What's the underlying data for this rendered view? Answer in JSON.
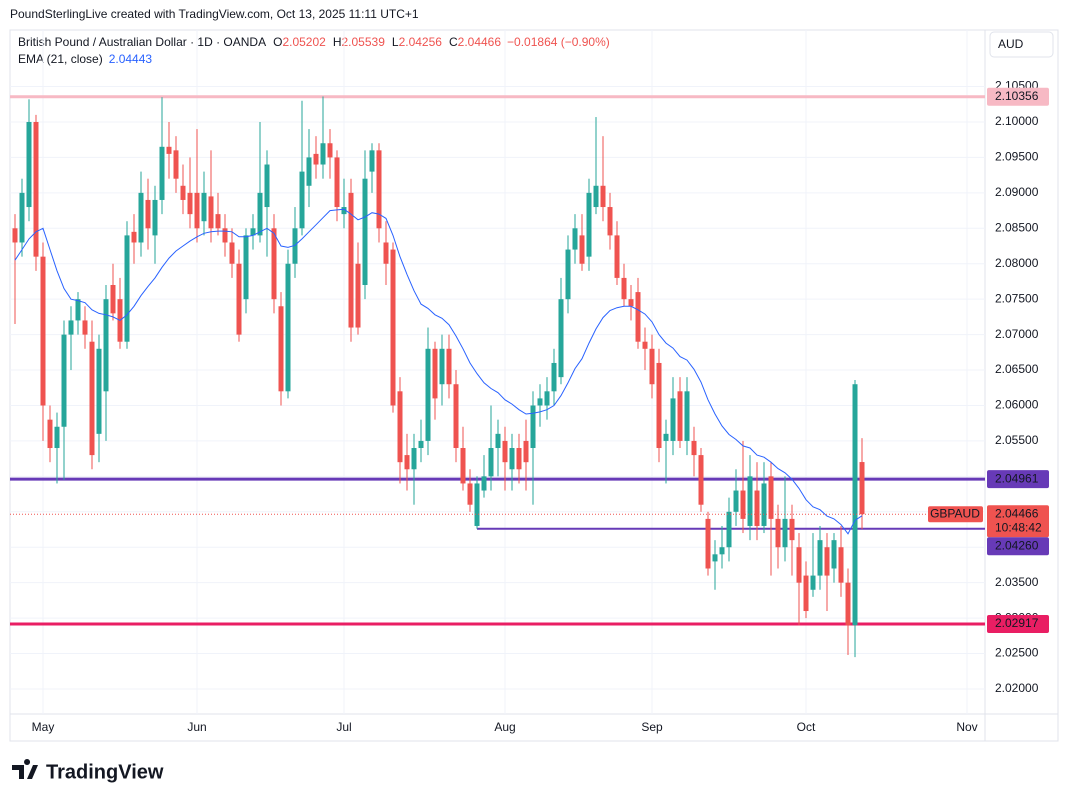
{
  "header": {
    "attribution": "PoundSterlingLive created with TradingView.com, Oct 13, 2025 11:11 UTC+1",
    "symbol": "British Pound / Australian Dollar · 1D · OANDA",
    "ohlc_labels": [
      "O",
      "H",
      "L",
      "C"
    ],
    "change": "−0.01864 (−0.90%)",
    "currency": "AUD",
    "logo": "TradingView"
  },
  "chart_data": {
    "type": "candlestick",
    "symbol": "GBPAUD",
    "countdown": "10:48:42",
    "colors": {
      "up": "#26a69a",
      "down": "#ef5350"
    },
    "open": [
      2.085,
      2.083,
      2.088,
      2.1,
      2.081,
      2.058,
      2.054,
      2.057,
      2.07,
      2.072,
      2.072,
      2.069,
      2.056,
      2.062,
      2.077,
      2.075,
      2.069,
      2.0845,
      2.083,
      2.089,
      2.084,
      2.089,
      2.0965,
      2.096,
      2.091,
      2.09,
      2.09,
      2.086,
      2.0895,
      2.087,
      2.085,
      2.083,
      2.08,
      2.075,
      2.084,
      2.084,
      2.088,
      2.085,
      2.074,
      2.062,
      2.08,
      2.085,
      2.091,
      2.0955,
      2.094,
      2.097,
      2.095,
      2.087,
      2.09,
      2.08,
      2.077,
      2.093,
      2.096,
      2.083,
      2.082,
      2.062,
      2.053,
      2.051,
      2.054,
      2.055,
      2.068,
      2.063,
      2.068,
      2.063,
      2.054,
      2.049,
      2.043,
      2.048,
      2.05,
      2.054,
      2.055,
      2.051,
      2.054,
      2.055,
      2.054,
      2.06,
      2.06,
      2.062,
      2.064,
      2.075,
      2.082,
      2.084,
      2.081,
      2.088,
      2.091,
      2.088,
      2.084,
      2.078,
      2.075,
      2.076,
      2.069,
      2.068,
      2.066,
      2.055,
      2.055,
      2.062,
      2.055,
      2.055,
      2.053,
      2.044,
      2.038,
      2.039,
      2.04,
      2.045,
      2.048,
      2.043,
      2.048,
      2.043,
      2.05,
      2.044,
      2.04,
      2.044,
      2.04,
      2.036,
      2.034,
      2.036,
      2.04,
      2.037,
      2.04,
      2.035,
      2.029,
      2.05202
    ],
    "high": [
      2.087,
      2.092,
      2.1032,
      2.101,
      2.083,
      2.06,
      2.059,
      2.072,
      2.074,
      2.076,
      2.074,
      2.072,
      2.07,
      2.077,
      2.08,
      2.078,
      2.086,
      2.087,
      2.093,
      2.092,
      2.091,
      2.1035,
      2.1,
      2.098,
      2.094,
      2.095,
      2.099,
      2.093,
      2.096,
      2.09,
      2.087,
      2.085,
      2.082,
      2.085,
      2.087,
      2.1,
      2.096,
      2.087,
      2.076,
      2.082,
      2.088,
      2.103,
      2.099,
      2.098,
      2.1036,
      2.099,
      2.096,
      2.092,
      2.092,
      2.083,
      2.096,
      2.097,
      2.097,
      2.086,
      2.083,
      2.064,
      2.056,
      2.056,
      2.058,
      2.071,
      2.069,
      2.07,
      2.07,
      2.065,
      2.057,
      2.051,
      2.05,
      2.053,
      2.06,
      2.058,
      2.057,
      2.056,
      2.056,
      2.058,
      2.062,
      2.063,
      2.064,
      2.068,
      2.078,
      2.084,
      2.087,
      2.087,
      2.092,
      2.1007,
      2.098,
      2.09,
      2.086,
      2.08,
      2.077,
      2.078,
      2.071,
      2.07,
      2.068,
      2.058,
      2.064,
      2.064,
      2.064,
      2.057,
      2.054,
      2.045,
      2.041,
      2.043,
      2.047,
      2.051,
      2.055,
      2.053,
      2.052,
      2.052,
      2.052,
      2.046,
      2.05,
      2.046,
      2.042,
      2.038,
      2.042,
      2.043,
      2.042,
      2.042,
      2.043,
      2.037,
      2.0636,
      2.05539
    ],
    "low": [
      2.0715,
      2.081,
      2.086,
      2.079,
      2.055,
      2.052,
      2.049,
      2.0495,
      2.065,
      2.07,
      2.068,
      2.051,
      2.052,
      2.055,
      2.072,
      2.068,
      2.068,
      2.08,
      2.081,
      2.082,
      2.08,
      2.087,
      2.092,
      2.09,
      2.087,
      2.085,
      2.083,
      2.084,
      2.083,
      2.084,
      2.081,
      2.078,
      2.069,
      2.073,
      2.082,
      2.083,
      2.081,
      2.073,
      2.06,
      2.061,
      2.078,
      2.084,
      2.088,
      2.092,
      2.092,
      2.092,
      2.086,
      2.085,
      2.069,
      2.07,
      2.075,
      2.09,
      2.083,
      2.077,
      2.059,
      2.049,
      2.048,
      2.046,
      2.052,
      2.053,
      2.058,
      2.06,
      2.061,
      2.052,
      2.048,
      2.045,
      2.0426,
      2.047,
      2.048,
      2.05,
      2.048,
      2.048,
      2.049,
      2.048,
      2.046,
      2.057,
      2.058,
      2.06,
      2.063,
      2.073,
      2.08,
      2.079,
      2.079,
      2.087,
      2.086,
      2.082,
      2.077,
      2.074,
      2.072,
      2.068,
      2.065,
      2.061,
      2.052,
      2.049,
      2.053,
      2.054,
      2.053,
      2.05,
      2.045,
      2.036,
      2.034,
      2.037,
      2.038,
      2.043,
      2.042,
      2.041,
      2.041,
      2.042,
      2.036,
      2.037,
      2.038,
      2.036,
      2.029,
      2.03,
      2.033,
      2.034,
      2.031,
      2.035,
      2.033,
      2.0248,
      2.0245,
      2.04256
    ],
    "close": [
      2.083,
      2.09,
      2.1,
      2.081,
      2.06,
      2.054,
      2.057,
      2.07,
      2.072,
      2.075,
      2.07,
      2.053,
      2.068,
      2.075,
      2.073,
      2.069,
      2.084,
      2.083,
      2.09,
      2.085,
      2.089,
      2.0965,
      2.0955,
      2.092,
      2.089,
      2.087,
      2.085,
      2.09,
      2.085,
      2.085,
      2.083,
      2.08,
      2.07,
      2.084,
      2.085,
      2.09,
      2.094,
      2.075,
      2.062,
      2.08,
      2.085,
      2.093,
      2.095,
      2.094,
      2.097,
      2.095,
      2.088,
      2.088,
      2.071,
      2.071,
      2.092,
      2.096,
      2.085,
      2.08,
      2.06,
      2.052,
      2.051,
      2.054,
      2.055,
      2.068,
      2.061,
      2.068,
      2.063,
      2.054,
      2.049,
      2.046,
      2.049,
      2.05,
      2.054,
      2.056,
      2.052,
      2.054,
      2.051,
      2.052,
      2.06,
      2.061,
      2.062,
      2.066,
      2.075,
      2.082,
      2.085,
      2.08,
      2.09,
      2.091,
      2.088,
      2.084,
      2.078,
      2.075,
      2.074,
      2.069,
      2.068,
      2.063,
      2.054,
      2.056,
      2.061,
      2.055,
      2.062,
      2.053,
      2.046,
      2.037,
      2.039,
      2.04,
      2.045,
      2.048,
      2.044,
      2.05,
      2.043,
      2.049,
      2.044,
      2.04,
      2.044,
      2.041,
      2.035,
      2.031,
      2.036,
      2.041,
      2.036,
      2.041,
      2.035,
      2.029,
      2.063,
      2.04466
    ],
    "ema": {
      "name": "EMA (21, close)",
      "color": "#2962ff",
      "values": [
        2.0805,
        2.082,
        2.0835,
        2.0845,
        2.085,
        2.082,
        2.079,
        2.0765,
        2.075,
        2.0748,
        2.0745,
        2.0735,
        2.073,
        2.0728,
        2.0725,
        2.072,
        2.0728,
        2.074,
        2.0755,
        2.0768,
        2.078,
        2.0795,
        2.0808,
        2.0818,
        2.0825,
        2.0832,
        2.0838,
        2.0843,
        2.0845,
        2.0846,
        2.0846,
        2.0845,
        2.0838,
        2.0838,
        2.084,
        2.0845,
        2.085,
        2.0843,
        2.0825,
        2.0823,
        2.0826,
        2.0835,
        2.0845,
        2.0855,
        2.0865,
        2.0875,
        2.0876,
        2.0877,
        2.087,
        2.0862,
        2.0866,
        2.0872,
        2.087,
        2.0864,
        2.084,
        2.081,
        2.0785,
        2.0762,
        2.0743,
        2.0737,
        2.0728,
        2.0723,
        2.0714,
        2.0698,
        2.068,
        2.066,
        2.0645,
        2.0632,
        2.0624,
        2.0618,
        2.0608,
        2.0602,
        2.0594,
        2.0588,
        2.0589,
        2.0591,
        2.0594,
        2.06,
        2.0614,
        2.0632,
        2.0652,
        2.0666,
        2.0688,
        2.0708,
        2.0724,
        2.0734,
        2.0738,
        2.074,
        2.074,
        2.0735,
        2.0729,
        2.0718,
        2.07,
        2.0688,
        2.0681,
        2.0669,
        2.0664,
        2.0651,
        2.0633,
        2.0608,
        2.0588,
        2.0571,
        2.0559,
        2.0552,
        2.0543,
        2.054,
        2.053,
        2.0527,
        2.052,
        2.0511,
        2.0505,
        2.0496,
        2.0483,
        2.0467,
        2.0457,
        2.0453,
        2.0444,
        2.044,
        2.0432,
        2.0419,
        2.0438,
        2.04443
      ]
    },
    "levels": [
      {
        "value": 2.10356,
        "color": "#f7b9c4",
        "text_color": "#131722",
        "width": 3
      },
      {
        "value": 2.04961,
        "color": "#673ab7",
        "text_color": "#ffffff",
        "width": 3
      },
      {
        "value": 2.0426,
        "label": "2.04260",
        "color": "#673ab7",
        "text_color": "#ffffff",
        "width": 2,
        "start": 66
      },
      {
        "value": 2.02917,
        "color": "#e91e63",
        "text_color": "#ffffff",
        "width": 3
      }
    ],
    "xlim": [
      -0.714,
      138.57
    ],
    "xticks": [
      {
        "value": 4,
        "label": "May"
      },
      {
        "value": 26,
        "label": "Jun"
      },
      {
        "value": 47,
        "label": "Jul"
      },
      {
        "value": 70,
        "label": "Aug"
      },
      {
        "value": 91,
        "label": "Sep"
      },
      {
        "value": 113,
        "label": "Oct"
      },
      {
        "value": 136,
        "label": "Nov"
      }
    ],
    "ylim": [
      2.01647,
      2.11298
    ],
    "yticks": [
      {
        "value": 2.02,
        "label": "2.02000"
      },
      {
        "value": 2.025,
        "label": "2.02500"
      },
      {
        "value": 2.03,
        "label": "2.03000"
      },
      {
        "value": 2.035,
        "label": "2.03500"
      },
      {
        "value": 2.04,
        "label": "2.04000"
      },
      {
        "value": 2.045,
        "label": "2.04500"
      },
      {
        "value": 2.05,
        "label": "2.05000"
      },
      {
        "value": 2.055,
        "label": "2.05500"
      },
      {
        "value": 2.06,
        "label": "2.06000"
      },
      {
        "value": 2.065,
        "label": "2.06500"
      },
      {
        "value": 2.07,
        "label": "2.07000"
      },
      {
        "value": 2.075,
        "label": "2.07500"
      },
      {
        "value": 2.08,
        "label": "2.08000"
      },
      {
        "value": 2.085,
        "label": "2.08500"
      },
      {
        "value": 2.09,
        "label": "2.09000"
      },
      {
        "value": 2.095,
        "label": "2.09500"
      },
      {
        "value": 2.1,
        "label": "2.10000"
      },
      {
        "value": 2.105,
        "label": "2.10500"
      }
    ],
    "grid": true
  }
}
